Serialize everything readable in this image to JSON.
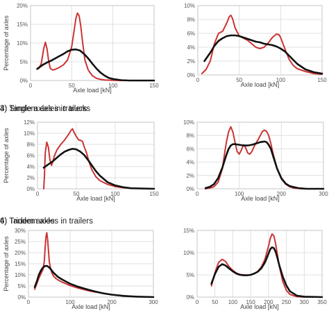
{
  "colors": {
    "measured": "#cc3333",
    "model": "#111111"
  },
  "chart_data": [
    {
      "type": "line",
      "title": "",
      "xlabel": "Axle load [kN]",
      "ylabel": "Percentage of axles",
      "xlim": [
        0,
        150
      ],
      "ylim": [
        0,
        20
      ],
      "xticks": [
        "0",
        "50",
        "100",
        "150"
      ],
      "xtick_values": [
        0,
        50,
        100,
        150
      ],
      "yticks": [
        "0%",
        "5%",
        "10%",
        "15%",
        "20%"
      ],
      "ytick_values": [
        0,
        5,
        10,
        15,
        20
      ],
      "grid": true,
      "series": [
        {
          "role": "measured",
          "x": [
            10,
            13,
            16,
            18,
            20,
            22,
            24,
            27,
            30,
            35,
            40,
            45,
            50,
            53,
            55,
            57,
            59,
            61,
            63,
            66,
            70,
            75,
            80,
            85,
            90,
            100,
            110,
            120,
            150
          ],
          "y": [
            3.2,
            4.5,
            8.5,
            10.2,
            8.5,
            5.2,
            3.2,
            2.8,
            3.0,
            3.5,
            4.2,
            5.5,
            9.0,
            13.5,
            16.5,
            18,
            17.3,
            14.5,
            10.5,
            5.5,
            2.8,
            1.3,
            0.6,
            0.3,
            0.15,
            0.05,
            0,
            0,
            0
          ]
        },
        {
          "role": "model",
          "x": [
            8,
            15,
            20,
            25,
            30,
            35,
            40,
            45,
            50,
            55,
            60,
            65,
            70,
            75,
            80,
            85,
            90,
            95,
            100,
            110,
            120,
            150
          ],
          "y": [
            3.1,
            4.2,
            4.8,
            5.3,
            5.9,
            6.5,
            7.1,
            7.8,
            8.2,
            8.3,
            8.0,
            7.1,
            5.9,
            4.5,
            3.2,
            2.1,
            1.3,
            0.7,
            0.4,
            0.1,
            0,
            0
          ]
        }
      ]
    },
    {
      "type": "line",
      "title": "",
      "xlabel": "Axle load [kN]",
      "ylabel": "",
      "xlim": [
        0,
        150
      ],
      "ylim": [
        0,
        10
      ],
      "xticks": [
        "0",
        "50",
        "100",
        "150"
      ],
      "xtick_values": [
        0,
        50,
        100,
        150
      ],
      "yticks": [
        "0%",
        "2%",
        "4%",
        "6%",
        "8%",
        "10%"
      ],
      "ytick_values": [
        0,
        2,
        4,
        6,
        8,
        10
      ],
      "grid": true,
      "series": [
        {
          "role": "measured",
          "x": [
            5,
            10,
            15,
            20,
            25,
            30,
            35,
            38,
            40,
            42,
            45,
            50,
            55,
            60,
            65,
            70,
            75,
            80,
            85,
            90,
            95,
            98,
            100,
            105,
            110,
            115,
            120,
            130,
            140,
            150
          ],
          "y": [
            0.2,
            0.8,
            2.0,
            4.5,
            6.0,
            6.3,
            7.5,
            8.4,
            8.6,
            8.1,
            6.8,
            5.6,
            5.3,
            5.0,
            4.5,
            4.0,
            3.8,
            4.0,
            4.6,
            5.4,
            5.9,
            5.8,
            5.4,
            3.8,
            2.3,
            1.4,
            0.9,
            0.5,
            0.2,
            0.1
          ]
        },
        {
          "role": "model",
          "x": [
            8,
            15,
            20,
            25,
            30,
            35,
            40,
            45,
            50,
            55,
            60,
            65,
            70,
            75,
            80,
            85,
            90,
            95,
            100,
            105,
            110,
            115,
            120,
            130,
            140,
            150
          ],
          "y": [
            2.0,
            3.2,
            4.2,
            4.9,
            5.3,
            5.6,
            5.7,
            5.7,
            5.6,
            5.4,
            5.2,
            5.0,
            4.8,
            4.7,
            4.5,
            4.4,
            4.3,
            4.1,
            3.8,
            3.4,
            2.8,
            2.2,
            1.6,
            0.8,
            0.4,
            0.2
          ]
        }
      ]
    },
    {
      "type": "line",
      "title": "3) Single axles in trailers",
      "xlabel": "Axle load [kN]",
      "ylabel": "Percentage of axles",
      "xlim": [
        0,
        150
      ],
      "ylim": [
        0,
        12
      ],
      "xticks": [
        "0",
        "50",
        "100",
        "150"
      ],
      "xtick_values": [
        0,
        50,
        100,
        150
      ],
      "yticks": [
        "0%",
        "2%",
        "4%",
        "6%",
        "8%",
        "10%",
        "12%"
      ],
      "ytick_values": [
        0,
        2,
        4,
        6,
        8,
        10,
        12
      ],
      "grid": true,
      "series": [
        {
          "role": "measured",
          "x": [
            8,
            9,
            10,
            12,
            14,
            16,
            18,
            20,
            22,
            25,
            30,
            35,
            40,
            43,
            45,
            47,
            50,
            53,
            56,
            58,
            60,
            63,
            66,
            70,
            75,
            80,
            90,
            100,
            110,
            120,
            150
          ],
          "y": [
            0,
            2.5,
            6.5,
            8.4,
            7.5,
            5.2,
            4.2,
            5.0,
            6.0,
            7.0,
            8.0,
            8.8,
            9.8,
            10.5,
            10.8,
            10.2,
            9.4,
            8.8,
            8.7,
            8.5,
            7.6,
            6.5,
            5.0,
            3.4,
            2.2,
            1.5,
            0.8,
            0.4,
            0.2,
            0.1,
            0
          ]
        },
        {
          "role": "model",
          "x": [
            8,
            15,
            20,
            25,
            30,
            35,
            40,
            45,
            50,
            55,
            60,
            65,
            70,
            75,
            80,
            90,
            100,
            110,
            120,
            150
          ],
          "y": [
            3.8,
            4.5,
            5.0,
            5.6,
            6.2,
            6.7,
            7.0,
            7.2,
            7.1,
            6.7,
            6.1,
            5.2,
            4.2,
            3.2,
            2.4,
            1.2,
            0.6,
            0.3,
            0.1,
            0
          ]
        }
      ]
    },
    {
      "type": "line",
      "title": "4) Tandem axles in trucks",
      "xlabel": "Axle load [kN]",
      "ylabel": "",
      "xlim": [
        0,
        300
      ],
      "ylim": [
        0,
        10
      ],
      "xticks": [
        "0",
        "100",
        "200",
        "300"
      ],
      "xtick_values": [
        0,
        100,
        200,
        300
      ],
      "yticks": [
        "0%",
        "2%",
        "4%",
        "6%",
        "8%",
        "10%"
      ],
      "ytick_values": [
        0,
        2,
        4,
        6,
        8,
        10
      ],
      "grid": true,
      "series": [
        {
          "role": "measured",
          "x": [
            20,
            30,
            40,
            50,
            60,
            65,
            70,
            75,
            80,
            85,
            90,
            95,
            100,
            105,
            110,
            115,
            120,
            125,
            130,
            135,
            140,
            145,
            150,
            155,
            160,
            165,
            170,
            175,
            180,
            190,
            200,
            210,
            220,
            230,
            250,
            300
          ],
          "y": [
            0,
            0.1,
            0.3,
            1.0,
            3.0,
            5.2,
            7.2,
            8.6,
            9.3,
            8.5,
            7.0,
            5.6,
            5.2,
            5.8,
            6.6,
            6.2,
            5.4,
            5.2,
            5.6,
            6.3,
            6.9,
            7.4,
            8.0,
            8.6,
            8.8,
            8.6,
            8.0,
            6.8,
            5.4,
            3.0,
            1.5,
            0.7,
            0.3,
            0.1,
            0,
            0
          ]
        },
        {
          "role": "model",
          "x": [
            20,
            30,
            40,
            50,
            60,
            70,
            75,
            80,
            85,
            90,
            100,
            110,
            120,
            130,
            140,
            150,
            160,
            165,
            170,
            175,
            180,
            190,
            200,
            210,
            220,
            240,
            260,
            300
          ],
          "y": [
            0.1,
            0.3,
            0.7,
            1.6,
            3.2,
            5.2,
            6.0,
            6.5,
            6.7,
            6.7,
            6.6,
            6.5,
            6.5,
            6.6,
            6.8,
            7.0,
            7.1,
            7.0,
            6.6,
            6.0,
            5.0,
            3.0,
            1.6,
            0.8,
            0.4,
            0.1,
            0,
            0
          ]
        }
      ]
    },
    {
      "type": "line",
      "title": "4) Tandem axles in trailers",
      "xlabel": "Axle load [kN]",
      "ylabel": "Percentage of axles",
      "xlim": [
        0,
        300
      ],
      "ylim": [
        0,
        30
      ],
      "xticks": [
        "0",
        "100",
        "200",
        "300"
      ],
      "xtick_values": [
        0,
        100,
        200,
        300
      ],
      "yticks": [
        "0%",
        "5%",
        "10%",
        "15%",
        "20%",
        "25%",
        "30%"
      ],
      "ytick_values": [
        0,
        5,
        10,
        15,
        20,
        25,
        30
      ],
      "grid": true,
      "series": [
        {
          "role": "measured",
          "x": [
            15,
            20,
            25,
            30,
            35,
            38,
            40,
            42,
            44,
            46,
            48,
            50,
            53,
            56,
            60,
            65,
            70,
            80,
            90,
            100,
            120,
            150,
            200,
            250,
            300
          ],
          "y": [
            3.5,
            6.0,
            8.5,
            10.5,
            12.5,
            16,
            22,
            27,
            29,
            26,
            21,
            16,
            13,
            11,
            9.5,
            8.5,
            7.8,
            6.8,
            6.0,
            5.2,
            4.0,
            2.6,
            1.0,
            0.3,
            0
          ]
        },
        {
          "role": "model",
          "x": [
            15,
            20,
            25,
            30,
            35,
            40,
            45,
            50,
            55,
            60,
            70,
            80,
            90,
            100,
            120,
            140,
            160,
            180,
            200,
            230,
            260,
            300
          ],
          "y": [
            4.5,
            7.0,
            10.0,
            12.0,
            13.3,
            14.0,
            14.0,
            13.3,
            12.2,
            11.0,
            9.2,
            8.0,
            7.0,
            6.0,
            4.6,
            3.5,
            2.5,
            1.7,
            1.1,
            0.5,
            0.2,
            0
          ]
        }
      ]
    },
    {
      "type": "line",
      "title": "6) Tridem axles",
      "xlabel": "Axle load [kN]",
      "ylabel": "",
      "xlim": [
        0,
        350
      ],
      "ylim": [
        0,
        15
      ],
      "xticks": [
        "0",
        "50",
        "100",
        "150",
        "200",
        "250",
        "300",
        "350"
      ],
      "xtick_values": [
        0,
        50,
        100,
        150,
        200,
        250,
        300,
        350
      ],
      "yticks": [
        "0%",
        "5%",
        "10%",
        "15%"
      ],
      "ytick_values": [
        0,
        5,
        10,
        15
      ],
      "grid": true,
      "series": [
        {
          "role": "measured",
          "x": [
            40,
            50,
            60,
            70,
            80,
            90,
            100,
            110,
            120,
            130,
            140,
            150,
            160,
            170,
            180,
            190,
            200,
            205,
            210,
            215,
            220,
            225,
            230,
            240,
            250,
            260,
            280,
            300,
            350
          ],
          "y": [
            2.5,
            5.5,
            7.8,
            8.5,
            8.0,
            6.8,
            6.0,
            5.4,
            5.1,
            5.0,
            4.9,
            5.0,
            5.3,
            5.8,
            6.8,
            8.5,
            11.5,
            13.2,
            14.2,
            13.8,
            12.0,
            9.5,
            7.0,
            3.5,
            1.5,
            0.6,
            0.1,
            0,
            0
          ]
        },
        {
          "role": "model",
          "x": [
            40,
            50,
            60,
            70,
            80,
            90,
            100,
            110,
            120,
            130,
            140,
            150,
            160,
            170,
            180,
            190,
            200,
            205,
            210,
            215,
            220,
            225,
            230,
            240,
            250,
            260,
            280,
            300,
            350
          ],
          "y": [
            3.0,
            5.2,
            6.8,
            7.4,
            7.1,
            6.4,
            5.8,
            5.3,
            5.0,
            4.9,
            4.9,
            5.0,
            5.3,
            5.7,
            6.5,
            7.8,
            9.8,
            10.8,
            11.2,
            11.0,
            10.2,
            8.8,
            7.2,
            4.6,
            2.6,
            1.3,
            0.3,
            0.1,
            0
          ]
        }
      ]
    }
  ]
}
